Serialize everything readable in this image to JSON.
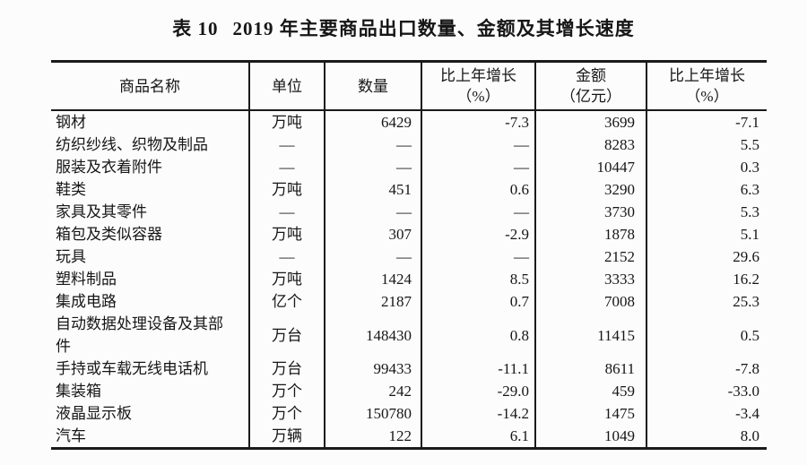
{
  "title": {
    "prefix": "表 10",
    "text": "2019 年主要商品出口数量、金额及其增长速度"
  },
  "colors": {
    "text": "#161616",
    "border": "#1a1a1a",
    "background": "#fcfcfc"
  },
  "table": {
    "columns": [
      {
        "key": "name",
        "label_lines": [
          "商品名称"
        ]
      },
      {
        "key": "unit",
        "label_lines": [
          "单位"
        ]
      },
      {
        "key": "quantity",
        "label_lines": [
          "数量"
        ]
      },
      {
        "key": "qty_growth",
        "label_lines": [
          "比上年增长",
          "（%）"
        ]
      },
      {
        "key": "amount",
        "label_lines": [
          "金额",
          "（亿元）"
        ]
      },
      {
        "key": "amt_growth",
        "label_lines": [
          "比上年增长",
          "（%）"
        ]
      }
    ],
    "rows": [
      {
        "name": "钢材",
        "unit": "万吨",
        "quantity": "6429",
        "qty_growth": "-7.3",
        "amount": "3699",
        "amt_growth": "-7.1"
      },
      {
        "name": "纺织纱线、织物及制品",
        "unit": "—",
        "quantity": "—",
        "qty_growth": "—",
        "amount": "8283",
        "amt_growth": "5.5"
      },
      {
        "name": "服装及衣着附件",
        "unit": "—",
        "quantity": "—",
        "qty_growth": "—",
        "amount": "10447",
        "amt_growth": "0.3"
      },
      {
        "name": "鞋类",
        "unit": "万吨",
        "quantity": "451",
        "qty_growth": "0.6",
        "amount": "3290",
        "amt_growth": "6.3"
      },
      {
        "name": "家具及其零件",
        "unit": "—",
        "quantity": "—",
        "qty_growth": "—",
        "amount": "3730",
        "amt_growth": "5.3"
      },
      {
        "name": "箱包及类似容器",
        "unit": "万吨",
        "quantity": "307",
        "qty_growth": "-2.9",
        "amount": "1878",
        "amt_growth": "5.1"
      },
      {
        "name": "玩具",
        "unit": "—",
        "quantity": "—",
        "qty_growth": "—",
        "amount": "2152",
        "amt_growth": "29.6"
      },
      {
        "name": "塑料制品",
        "unit": "万吨",
        "quantity": "1424",
        "qty_growth": "8.5",
        "amount": "3333",
        "amt_growth": "16.2"
      },
      {
        "name": "集成电路",
        "unit": "亿个",
        "quantity": "2187",
        "qty_growth": "0.7",
        "amount": "7008",
        "amt_growth": "25.3"
      },
      {
        "name": "自动数据处理设备及其部件",
        "unit": "万台",
        "quantity": "148430",
        "qty_growth": "0.8",
        "amount": "11415",
        "amt_growth": "0.5"
      },
      {
        "name": "手持或车载无线电话机",
        "unit": "万台",
        "quantity": "99433",
        "qty_growth": "-11.1",
        "amount": "8611",
        "amt_growth": "-7.8"
      },
      {
        "name": "集装箱",
        "unit": "万个",
        "quantity": "242",
        "qty_growth": "-29.0",
        "amount": "459",
        "amt_growth": "-33.0"
      },
      {
        "name": "液晶显示板",
        "unit": "万个",
        "quantity": "150780",
        "qty_growth": "-14.2",
        "amount": "1475",
        "amt_growth": "-3.4"
      },
      {
        "name": "汽车",
        "unit": "万辆",
        "quantity": "122",
        "qty_growth": "6.1",
        "amount": "1049",
        "amt_growth": "8.0"
      }
    ]
  }
}
